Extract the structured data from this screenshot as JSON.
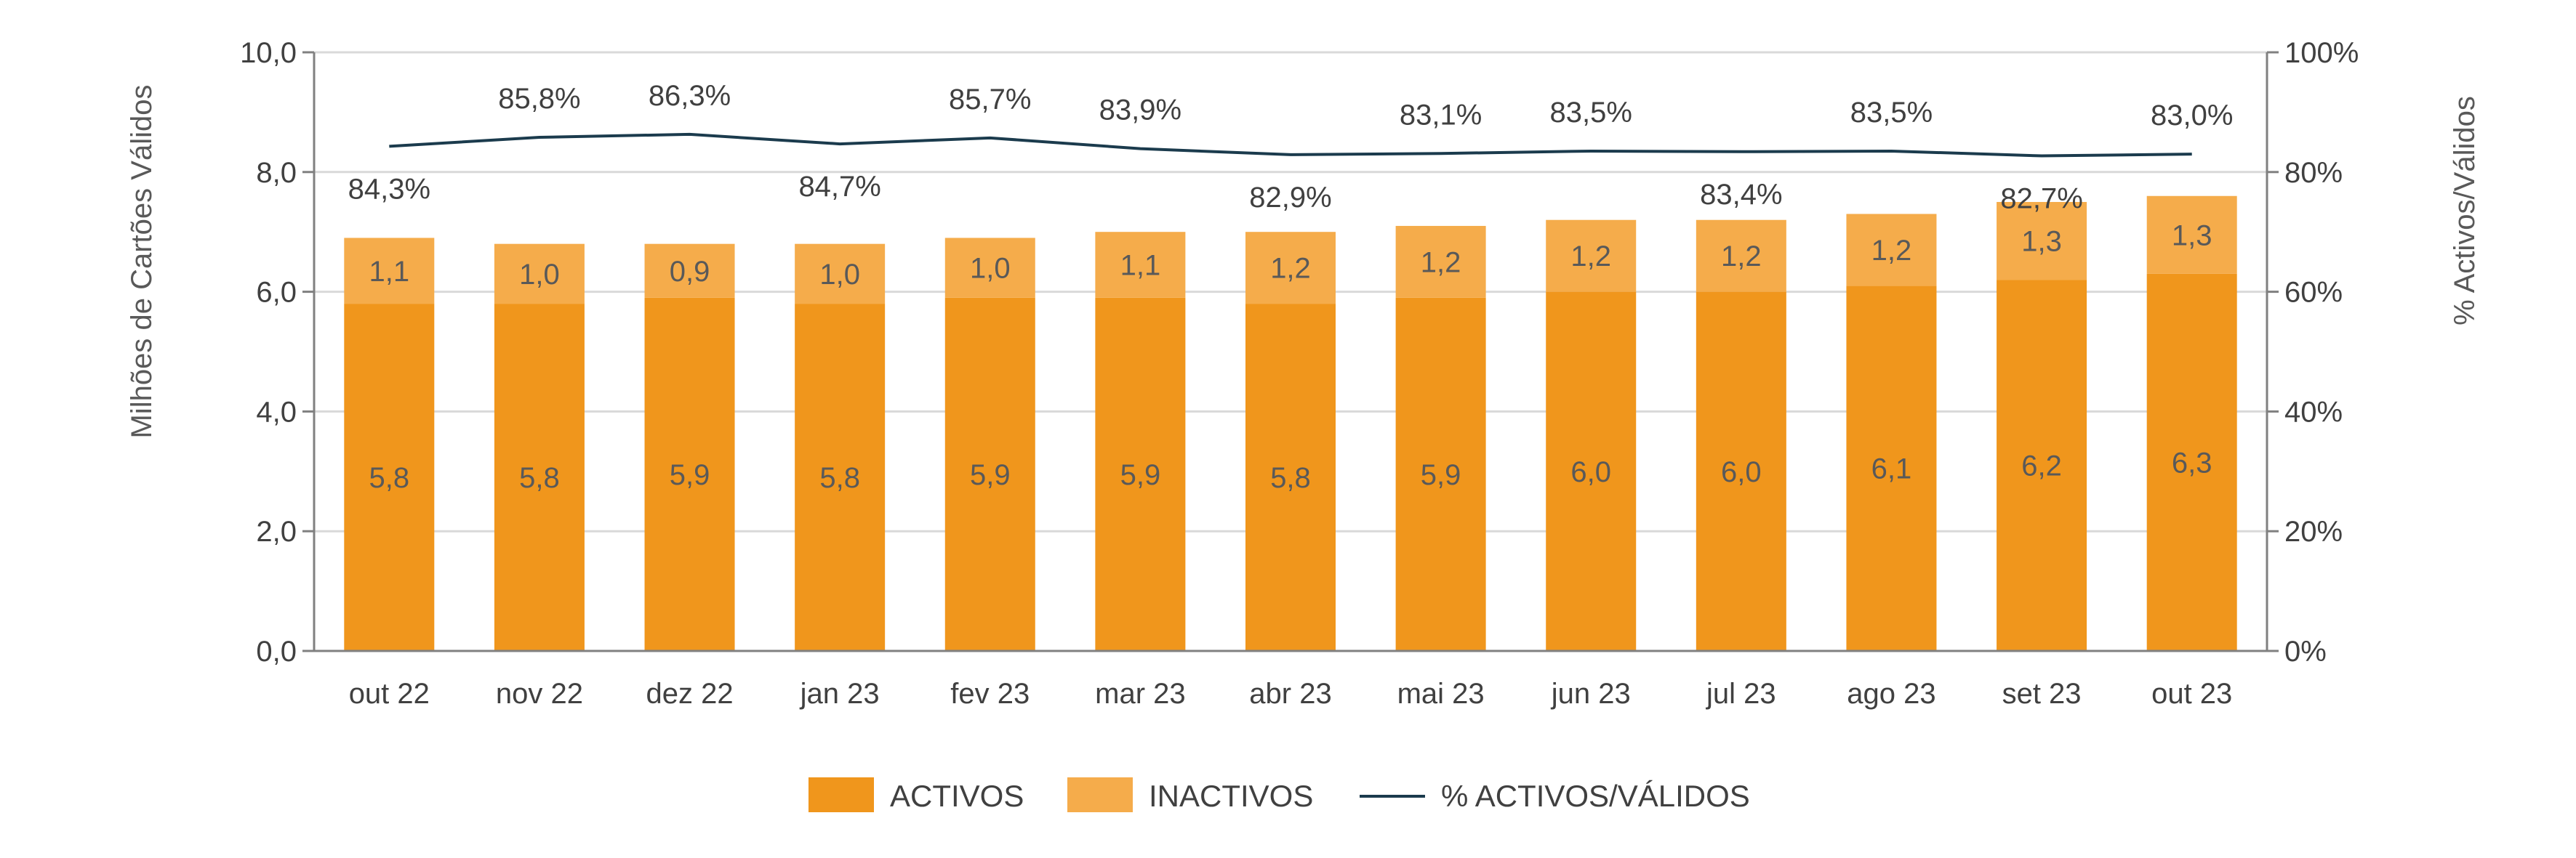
{
  "chart_data": {
    "type": "bar",
    "stacked": true,
    "categories": [
      "out 22",
      "nov 22",
      "dez 22",
      "jan 23",
      "fev 23",
      "mar 23",
      "abr 23",
      "mai 23",
      "jun 23",
      "jul 23",
      "ago 23",
      "set 23",
      "out 23"
    ],
    "series": [
      {
        "name": "ACTIVOS",
        "type": "bar",
        "axis": "left",
        "color": "#F0961C",
        "values": [
          5.8,
          5.8,
          5.9,
          5.8,
          5.9,
          5.9,
          5.8,
          5.9,
          6.0,
          6.0,
          6.1,
          6.2,
          6.3
        ],
        "labels": [
          "5,8",
          "5,8",
          "5,9",
          "5,8",
          "5,9",
          "5,9",
          "5,8",
          "5,9",
          "6,0",
          "6,0",
          "6,1",
          "6,2",
          "6,3"
        ]
      },
      {
        "name": "INACTIVOS",
        "type": "bar",
        "axis": "left",
        "color": "#F5AC4B",
        "values": [
          1.1,
          1.0,
          0.9,
          1.0,
          1.0,
          1.1,
          1.2,
          1.2,
          1.2,
          1.2,
          1.2,
          1.3,
          1.3
        ],
        "labels": [
          "1,1",
          "1,0",
          "0,9",
          "1,0",
          "1,0",
          "1,1",
          "1,2",
          "1,2",
          "1,2",
          "1,2",
          "1,2",
          "1,3",
          "1,3"
        ]
      },
      {
        "name": "% ACTIVOS/VÁLIDOS",
        "type": "line",
        "axis": "right",
        "color": "#1B3B4D",
        "values": [
          84.3,
          85.8,
          86.3,
          84.7,
          85.7,
          83.9,
          82.9,
          83.1,
          83.5,
          83.4,
          83.5,
          82.7,
          83.0
        ],
        "labels": [
          "84,3%",
          "85,8%",
          "86,3%",
          "84,7%",
          "85,7%",
          "83,9%",
          "82,9%",
          "83,1%",
          "83,5%",
          "83,4%",
          "83,5%",
          "82,7%",
          "83,0%"
        ],
        "label_position": [
          "below",
          "above",
          "above",
          "below",
          "above",
          "above",
          "below",
          "above",
          "above",
          "below",
          "above",
          "below",
          "above"
        ]
      }
    ],
    "ylabel": "Milhões de Cartões Válidos",
    "ylim": [
      0,
      10
    ],
    "yticks": [
      "0,0",
      "2,0",
      "4,0",
      "6,0",
      "8,0",
      "10,0"
    ],
    "y2label": "% Activos/Válidos",
    "y2lim": [
      0,
      100
    ],
    "y2ticks": [
      "0%",
      "20%",
      "40%",
      "60%",
      "80%",
      "100%"
    ],
    "grid": true,
    "legend": "bottom-center"
  }
}
